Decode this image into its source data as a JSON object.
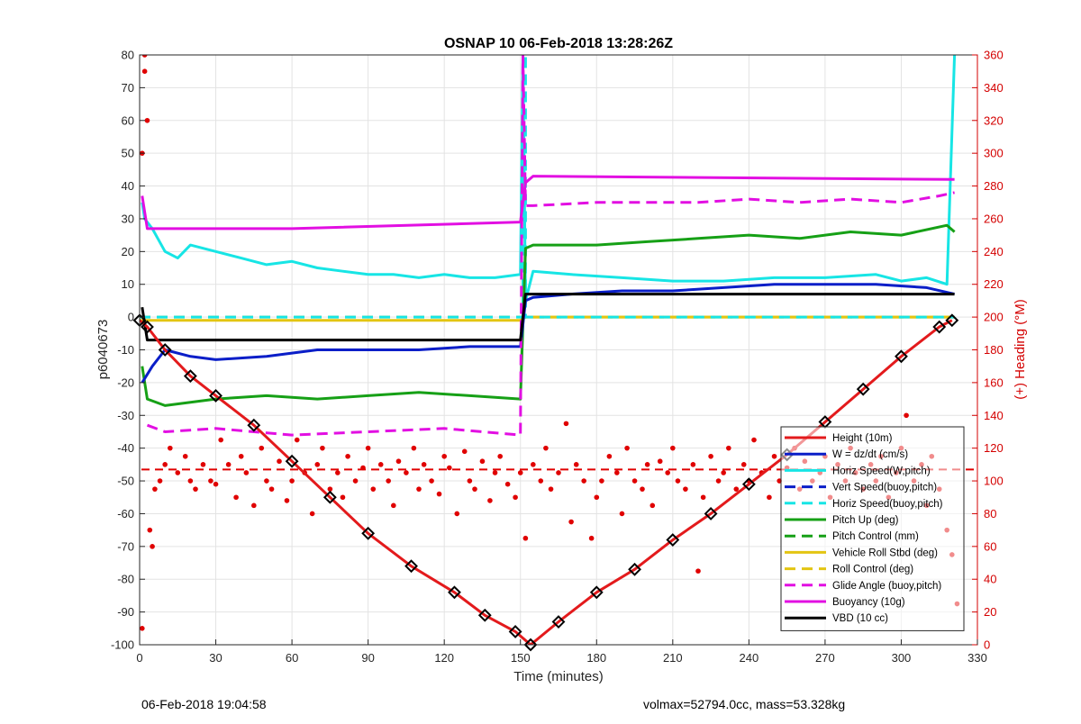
{
  "chart_data": {
    "type": "line",
    "title": "OSNAP 10 06-Feb-2018 13:28:26Z",
    "xlabel": "Time (minutes)",
    "ylabel": "p6040673",
    "y2label": "(+) Heading (°M)",
    "xlim": [
      0,
      330
    ],
    "ylim": [
      -100,
      80
    ],
    "y2lim": [
      0,
      360
    ],
    "xticks": [
      "0",
      "30",
      "60",
      "90",
      "120",
      "150",
      "180",
      "210",
      "240",
      "270",
      "300",
      "330"
    ],
    "yticks": [
      "-100",
      "-90",
      "-80",
      "-70",
      "-60",
      "-50",
      "-40",
      "-30",
      "-20",
      "-10",
      "0",
      "10",
      "20",
      "30",
      "40",
      "50",
      "60",
      "70",
      "80"
    ],
    "y2ticks": [
      "0",
      "20",
      "40",
      "60",
      "80",
      "100",
      "120",
      "140",
      "160",
      "180",
      "200",
      "220",
      "240",
      "260",
      "280",
      "300",
      "320",
      "340",
      "360"
    ],
    "grid": true,
    "legend_position": "lower-right",
    "colors": {
      "red": "#e31a1c",
      "blue": "#0a1ec8",
      "cyan": "#17e5e5",
      "green": "#16a016",
      "yellow": "#e3c512",
      "magenta": "#e20fe2",
      "black": "#000000",
      "heading": "#e00000"
    },
    "series": [
      {
        "name": "Height (10m)",
        "color": "red",
        "style": "solid",
        "x": [
          0,
          3,
          10,
          20,
          30,
          45,
          60,
          75,
          90,
          107,
          124,
          136,
          148,
          154,
          165,
          180,
          195,
          210,
          225,
          240,
          255,
          270,
          285,
          300,
          315,
          320
        ],
        "y": [
          -1,
          -3,
          -10,
          -18,
          -24,
          -33,
          -44,
          -55,
          -66,
          -76,
          -84,
          -91,
          -96,
          -100,
          -93,
          -84,
          -77,
          -68,
          -60,
          -51,
          -42,
          -32,
          -22,
          -12,
          -3,
          -1
        ]
      },
      {
        "name": "W = dz/dt (cm/s)",
        "color": "blue",
        "style": "solid",
        "x": [
          1,
          5,
          10,
          20,
          30,
          50,
          70,
          90,
          110,
          130,
          150,
          152,
          155,
          170,
          190,
          210,
          230,
          250,
          270,
          290,
          310,
          321
        ],
        "y": [
          -20,
          -15,
          -10,
          -12,
          -13,
          -12,
          -10,
          -10,
          -10,
          -9,
          -9,
          5,
          6,
          7,
          8,
          8,
          9,
          10,
          10,
          10,
          9,
          7
        ]
      },
      {
        "name": "Horiz Speed(W,pitch)",
        "color": "cyan",
        "style": "solid",
        "x": [
          1,
          2,
          5,
          10,
          15,
          20,
          30,
          40,
          50,
          60,
          70,
          80,
          90,
          100,
          110,
          120,
          130,
          140,
          150,
          151,
          152,
          155,
          170,
          190,
          210,
          230,
          250,
          270,
          290,
          300,
          310,
          318,
          321
        ],
        "y": [
          35,
          30,
          27,
          20,
          18,
          22,
          20,
          18,
          16,
          17,
          15,
          14,
          13,
          13,
          12,
          13,
          12,
          12,
          13,
          80,
          5,
          14,
          13,
          12,
          11,
          11,
          12,
          12,
          13,
          11,
          12,
          10,
          80
        ]
      },
      {
        "name": "Vert Speed(buoy,pitch)",
        "color": "blue",
        "style": "dashed",
        "x": [],
        "y": []
      },
      {
        "name": "Horiz Speed(buoy,pitch)",
        "color": "cyan",
        "style": "dashed",
        "x": [
          0,
          151,
          151,
          152,
          152,
          321
        ],
        "y": [
          0,
          0,
          80,
          80,
          0,
          0
        ]
      },
      {
        "name": "Pitch Up (deg)",
        "color": "green",
        "style": "solid",
        "x": [
          1,
          3,
          10,
          30,
          50,
          70,
          90,
          110,
          130,
          150,
          152,
          155,
          180,
          200,
          220,
          240,
          260,
          280,
          300,
          318,
          321
        ],
        "y": [
          -15,
          -25,
          -27,
          -25,
          -24,
          -25,
          -24,
          -23,
          -24,
          -25,
          21,
          22,
          22,
          23,
          24,
          25,
          24,
          26,
          25,
          28,
          26
        ]
      },
      {
        "name": "Pitch Control (mm)",
        "color": "green",
        "style": "dashed",
        "x": [],
        "y": []
      },
      {
        "name": "Vehicle Roll Stbd (deg)",
        "color": "yellow",
        "style": "solid",
        "x": [
          0,
          150,
          152,
          321
        ],
        "y": [
          -1,
          -1,
          0,
          0
        ]
      },
      {
        "name": "Roll Control (deg)",
        "color": "yellow",
        "style": "dashed",
        "x": [
          0,
          321
        ],
        "y": [
          0,
          0
        ]
      },
      {
        "name": "Glide Angle (buoy,pitch)",
        "color": "magenta",
        "style": "dashed",
        "x": [
          3,
          10,
          30,
          60,
          90,
          120,
          150,
          151,
          152,
          155,
          180,
          200,
          220,
          240,
          260,
          280,
          300,
          315,
          321
        ],
        "y": [
          -33,
          -35,
          -34,
          -36,
          -35,
          -34,
          -36,
          80,
          34,
          34,
          35,
          35,
          35,
          36,
          35,
          36,
          35,
          37,
          38
        ]
      },
      {
        "name": "Buoyancy (10g)",
        "color": "magenta",
        "style": "solid",
        "x": [
          1,
          3,
          60,
          150,
          152,
          155,
          321
        ],
        "y": [
          37,
          27,
          27,
          29,
          41,
          43,
          42
        ]
      },
      {
        "name": "VBD (10 cc)",
        "color": "black",
        "style": "solid",
        "x": [
          1,
          3,
          150,
          152,
          155,
          321
        ],
        "y": [
          3,
          -7,
          -7,
          7,
          7,
          7
        ]
      }
    ],
    "heading": {
      "name": "(+) Heading (°M)",
      "color": "heading",
      "target": 107,
      "x": [
        1,
        1,
        2,
        2,
        3,
        4,
        5,
        6,
        8,
        10,
        12,
        15,
        18,
        20,
        22,
        25,
        28,
        30,
        32,
        35,
        38,
        40,
        42,
        45,
        48,
        50,
        52,
        55,
        58,
        60,
        62,
        65,
        68,
        70,
        72,
        75,
        78,
        80,
        82,
        85,
        88,
        90,
        92,
        95,
        98,
        100,
        102,
        105,
        108,
        110,
        112,
        115,
        118,
        120,
        122,
        125,
        128,
        130,
        132,
        135,
        138,
        140,
        142,
        145,
        148,
        150,
        152,
        155,
        158,
        160,
        162,
        165,
        168,
        170,
        172,
        175,
        178,
        180,
        182,
        185,
        188,
        190,
        192,
        195,
        198,
        200,
        202,
        205,
        208,
        210,
        212,
        215,
        218,
        220,
        222,
        225,
        228,
        230,
        232,
        235,
        238,
        240,
        242,
        245,
        248,
        250,
        252,
        255,
        258,
        260,
        262,
        265,
        268,
        270,
        272,
        275,
        278,
        280,
        282,
        285,
        288,
        290,
        292,
        295,
        298,
        300,
        302,
        305,
        308,
        310,
        312,
        315,
        318,
        320,
        322
      ],
      "y": [
        10,
        300,
        350,
        360,
        320,
        70,
        60,
        95,
        100,
        110,
        120,
        105,
        115,
        100,
        95,
        110,
        100,
        98,
        125,
        110,
        90,
        115,
        105,
        85,
        120,
        100,
        95,
        112,
        88,
        100,
        125,
        105,
        80,
        110,
        120,
        95,
        105,
        90,
        115,
        100,
        108,
        120,
        95,
        110,
        100,
        85,
        112,
        105,
        120,
        95,
        110,
        100,
        92,
        115,
        108,
        80,
        118,
        100,
        95,
        112,
        88,
        105,
        115,
        98,
        90,
        105,
        65,
        110,
        100,
        120,
        95,
        105,
        135,
        75,
        110,
        100,
        65,
        90,
        100,
        115,
        105,
        80,
        120,
        100,
        95,
        110,
        85,
        112,
        105,
        120,
        100,
        95,
        110,
        45,
        90,
        115,
        100,
        105,
        120,
        95,
        110,
        100,
        125,
        105,
        90,
        115,
        100,
        108,
        120,
        95,
        112,
        100,
        105,
        115,
        90,
        110,
        100,
        120,
        105,
        95,
        110,
        100,
        115,
        90,
        105,
        120,
        140,
        100,
        110,
        85,
        115,
        95,
        70,
        55,
        25
      ]
    }
  },
  "footer": {
    "left": "06-Feb-2018 19:04:58",
    "right": "volmax=52794.0cc, mass=53.328kg"
  }
}
